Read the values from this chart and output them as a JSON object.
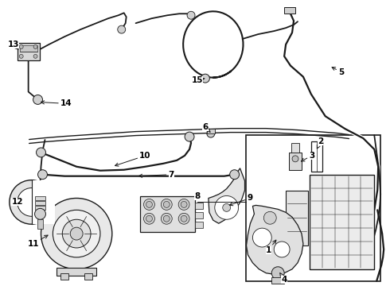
{
  "background_color": "#ffffff",
  "line_color": "#1a1a1a",
  "label_color": "#000000",
  "figsize": [
    4.9,
    3.6
  ],
  "dpi": 100,
  "lw_tube": 1.6,
  "lw_wire": 1.2,
  "lw_component": 0.9,
  "label_fs": 7.5
}
